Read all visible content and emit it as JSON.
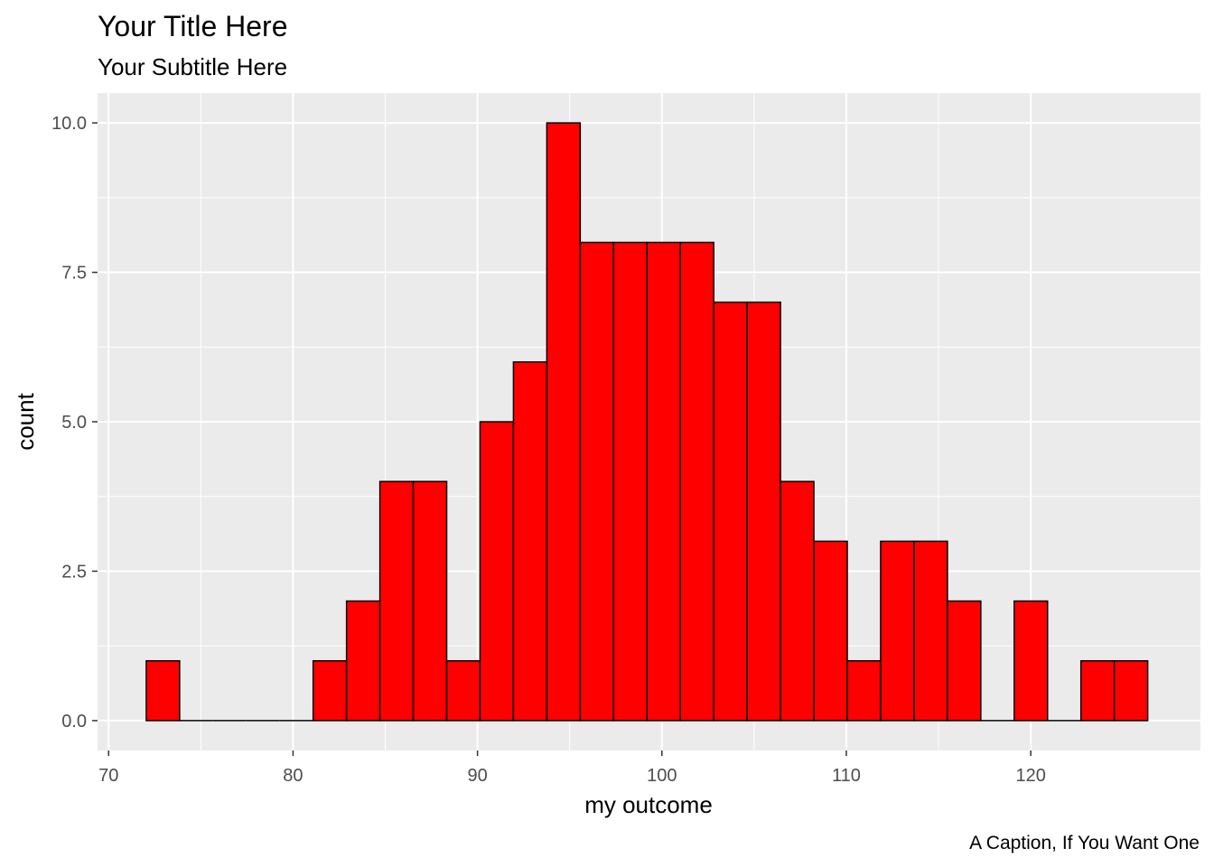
{
  "chart_data": {
    "type": "bar",
    "title": "Your Title Here",
    "subtitle": "Your Subtitle Here",
    "caption": "A Caption, If You Want One",
    "xlabel": "my outcome",
    "ylabel": "count",
    "xlim": [
      69.4,
      129.2
    ],
    "ylim": [
      -0.5,
      10.5
    ],
    "x_ticks": [
      70,
      80,
      90,
      100,
      110,
      120
    ],
    "x_tick_labels": [
      "70",
      "80",
      "90",
      "100",
      "110",
      "120"
    ],
    "y_ticks": [
      0,
      2.5,
      5,
      7.5,
      10
    ],
    "y_tick_labels": [
      "0.0",
      "2.5",
      "5.0",
      "7.5",
      "10.0"
    ],
    "grid": true,
    "bin_edges": [
      72.04,
      73.85,
      75.66,
      77.47,
      79.28,
      81.09,
      82.9,
      84.71,
      86.52,
      88.33,
      90.14,
      91.95,
      93.76,
      95.57,
      97.38,
      99.19,
      101.0,
      102.81,
      104.62,
      106.43,
      108.24,
      110.05,
      111.86,
      113.67,
      115.48,
      117.29,
      119.1,
      120.91,
      122.72,
      124.53,
      126.34
    ],
    "values": [
      1,
      0,
      0,
      0,
      0,
      1,
      2,
      4,
      4,
      1,
      5,
      6,
      10,
      8,
      8,
      8,
      8,
      7,
      7,
      4,
      3,
      1,
      3,
      3,
      2,
      0,
      2,
      0,
      1,
      1
    ],
    "colors": {
      "fill": "#ff0000",
      "outline": "#000000",
      "panel_background": "#ebebeb",
      "grid": "#ffffff"
    }
  }
}
